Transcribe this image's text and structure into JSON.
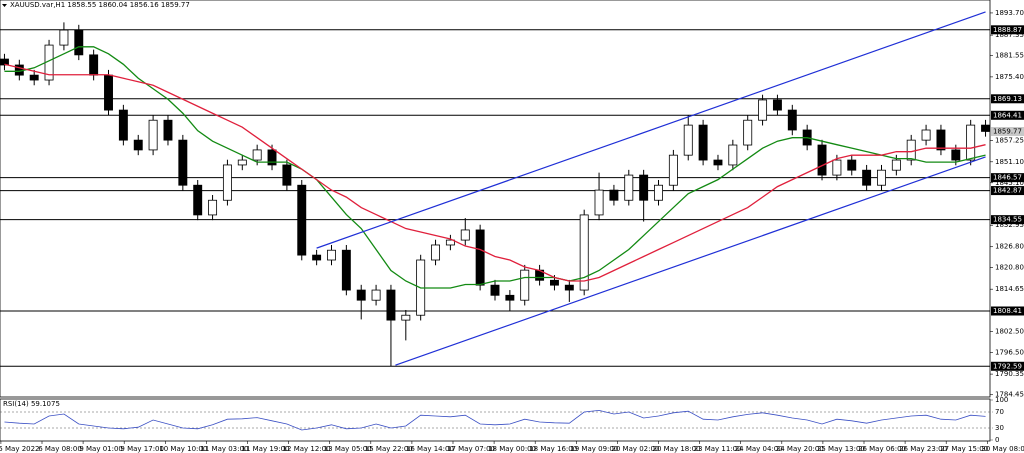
{
  "chart_data": [
    {
      "type": "candlestick",
      "title": "XAUUSD.var,H1  1858.55 1860.04 1856.16 1859.77",
      "ylim": [
        1783.8,
        1897.4
      ],
      "yticks": [
        {
          "value": 1893.7,
          "label": "1893.70"
        },
        1887.35,
        1881.55,
        {
          "value": 1875.4,
          "label": "1875.40"
        },
        1857.25,
        {
          "value": 1851.1,
          "label": "1851.10"
        },
        {
          "value": 1845.1,
          "label": "1845.10"
        },
        1832.95,
        {
          "value": 1826.8,
          "label": "1826.80"
        },
        {
          "value": 1820.8,
          "label": "1820.80"
        },
        1814.65,
        {
          "value": 1802.5,
          "label": "1802.50"
        },
        {
          "value": 1796.5,
          "label": "1796.50"
        },
        1790.35,
        1784.45
      ],
      "x_labels": [
        "5 May 2022",
        "6 May 08:00",
        "9 May 01:00",
        "9 May 17:00",
        "10 May 10:00",
        "11 May 03:00",
        "11 May 19:00",
        "12 May 12:00",
        "13 May 05:00",
        "15 May 22:00",
        "16 May 14:00",
        "17 May 07:00",
        "18 May 00:00",
        "18 May 16:00",
        "19 May 09:00",
        "20 May 02:00",
        "20 May 18:00",
        "23 May 11:00",
        "24 May 04:00",
        "24 May 20:00",
        "25 May 13:00",
        "26 May 06:00",
        "26 May 23:00",
        "27 May 15:00",
        "30 May 08:00"
      ],
      "open": [
        1880.5,
        1878.8,
        1875.9,
        1874.5,
        1884.5,
        1888.8,
        1881.7,
        1875.9,
        1865.9,
        1857.3,
        1854.5,
        1863.0,
        1857.3,
        1844.4,
        1835.9,
        1840.1,
        1850.2,
        1851.6,
        1854.5,
        1850.2,
        1844.4,
        1824.4,
        1823.0,
        1825.8,
        1814.4,
        1811.5,
        1814.4,
        1805.8,
        1807.2,
        1823.0,
        1827.3,
        1828.7,
        1831.6,
        1815.8,
        1812.9,
        1811.5,
        1820.1,
        1817.2,
        1815.8,
        1814.4,
        1835.9,
        1843.0,
        1840.1,
        1847.3,
        1840.1,
        1844.4,
        1853.0,
        1861.6,
        1851.6,
        1850.2,
        1855.9,
        1863.0,
        1868.8,
        1865.9,
        1860.2,
        1855.9,
        1847.3,
        1851.6,
        1848.7,
        1844.4,
        1848.7,
        1851.6,
        1857.3,
        1860.2,
        1854.5,
        1851.6,
        1861.6
      ],
      "high": [
        1882.0,
        1880.3,
        1877.4,
        1886.0,
        1891.0,
        1890.3,
        1883.2,
        1877.4,
        1867.4,
        1858.8,
        1864.5,
        1864.5,
        1858.8,
        1845.9,
        1841.6,
        1851.7,
        1853.1,
        1856.0,
        1856.0,
        1851.7,
        1845.9,
        1825.9,
        1827.3,
        1827.3,
        1815.9,
        1815.9,
        1815.9,
        1808.7,
        1824.5,
        1828.8,
        1830.2,
        1835.0,
        1833.1,
        1817.3,
        1814.4,
        1821.6,
        1821.6,
        1818.7,
        1817.3,
        1837.4,
        1848.0,
        1844.5,
        1848.8,
        1848.8,
        1845.9,
        1854.5,
        1864.4,
        1863.1,
        1853.1,
        1857.4,
        1864.5,
        1870.3,
        1870.3,
        1867.4,
        1861.7,
        1857.4,
        1853.1,
        1853.1,
        1850.2,
        1850.2,
        1853.1,
        1858.8,
        1861.7,
        1861.7,
        1856.0,
        1863.1,
        1863.1
      ],
      "low": [
        1877.3,
        1874.4,
        1873.0,
        1873.0,
        1883.0,
        1880.2,
        1874.4,
        1864.4,
        1855.8,
        1853.0,
        1853.0,
        1855.8,
        1842.9,
        1834.4,
        1834.4,
        1838.6,
        1848.7,
        1850.1,
        1848.7,
        1842.9,
        1822.9,
        1821.5,
        1821.5,
        1812.9,
        1806.0,
        1810.0,
        1792.6,
        1800.0,
        1805.7,
        1821.5,
        1825.8,
        1827.2,
        1814.3,
        1811.4,
        1808.4,
        1810.0,
        1815.7,
        1814.3,
        1811.0,
        1812.9,
        1834.4,
        1838.6,
        1838.6,
        1834.0,
        1838.6,
        1842.9,
        1851.5,
        1850.1,
        1848.7,
        1848.7,
        1854.4,
        1861.5,
        1864.4,
        1858.7,
        1854.4,
        1845.8,
        1845.8,
        1847.2,
        1842.9,
        1842.9,
        1847.2,
        1850.1,
        1855.8,
        1853.0,
        1850.1,
        1850.1,
        1858.3
      ],
      "close": [
        1878.8,
        1875.9,
        1874.5,
        1884.5,
        1888.8,
        1881.7,
        1875.9,
        1865.9,
        1857.3,
        1854.5,
        1863.0,
        1857.3,
        1844.4,
        1835.9,
        1840.1,
        1850.2,
        1851.6,
        1854.5,
        1850.2,
        1844.4,
        1824.4,
        1823.0,
        1825.8,
        1814.4,
        1811.5,
        1814.4,
        1805.8,
        1807.2,
        1823.0,
        1827.3,
        1828.7,
        1831.6,
        1815.8,
        1812.9,
        1811.5,
        1820.1,
        1817.2,
        1815.8,
        1814.4,
        1835.9,
        1843.0,
        1840.1,
        1847.3,
        1840.1,
        1844.4,
        1853.0,
        1861.6,
        1851.6,
        1850.2,
        1855.9,
        1863.0,
        1868.8,
        1865.9,
        1860.2,
        1855.9,
        1847.3,
        1851.6,
        1848.7,
        1844.4,
        1848.7,
        1851.6,
        1857.3,
        1860.2,
        1854.5,
        1851.6,
        1861.6,
        1859.8
      ],
      "moving_averages": [
        {
          "color": "#138a13",
          "values": [
            1877,
            1877,
            1878,
            1880,
            1882,
            1884,
            1884,
            1882,
            1879,
            1875,
            1872,
            1869,
            1865,
            1860,
            1857,
            1855,
            1853,
            1851,
            1851,
            1851,
            1849,
            1846,
            1841,
            1836,
            1832,
            1826,
            1820,
            1817,
            1815,
            1815,
            1815,
            1816,
            1816,
            1817,
            1817,
            1818,
            1818,
            1818,
            1817,
            1818,
            1820,
            1823,
            1826,
            1830,
            1834,
            1838,
            1842,
            1844,
            1846,
            1849,
            1852,
            1855,
            1857,
            1858,
            1858,
            1857,
            1856,
            1855,
            1854,
            1853,
            1852,
            1852,
            1851,
            1851,
            1851,
            1852,
            1853
          ]
        },
        {
          "color": "#e0203c",
          "values": [
            1879,
            1878,
            1877,
            1876,
            1876,
            1876,
            1876,
            1876,
            1875,
            1874,
            1873,
            1871,
            1869,
            1867,
            1865,
            1863,
            1861,
            1858,
            1855,
            1852,
            1849,
            1846,
            1843,
            1841,
            1838,
            1836,
            1834,
            1832,
            1831,
            1830,
            1829,
            1827,
            1826,
            1824,
            1823,
            1821,
            1820,
            1818,
            1817,
            1817,
            1818,
            1820,
            1822,
            1824,
            1826,
            1828,
            1830,
            1832,
            1834,
            1836,
            1838,
            1841,
            1844,
            1846,
            1848,
            1850,
            1852,
            1853,
            1853,
            1853,
            1854,
            1854,
            1855,
            1855,
            1855,
            1855,
            1856
          ]
        }
      ],
      "channels": [
        {
          "color": "#1f2fd6",
          "x": [
            21,
            66
          ],
          "y": [
            1826.4,
            1894.0
          ]
        },
        {
          "color": "#1f2fd6",
          "x": [
            26.3,
            66
          ],
          "y": [
            1792.9,
            1852.5
          ]
        }
      ],
      "levels": [
        1888.87,
        1869.13,
        1864.41,
        1846.57,
        1842.87,
        1834.55,
        1808.41,
        1792.59
      ],
      "last_price": 1859.77
    },
    {
      "type": "line",
      "title": "RSI(14) 59.1075",
      "color": "#3a4fc4",
      "ylim": [
        0,
        100
      ],
      "yticks": [
        100,
        70,
        30,
        0
      ],
      "values": [
        45,
        42,
        40,
        60,
        65,
        40,
        35,
        30,
        28,
        32,
        50,
        40,
        30,
        28,
        38,
        52,
        53,
        56,
        48,
        40,
        25,
        30,
        38,
        28,
        30,
        40,
        30,
        35,
        62,
        60,
        58,
        62,
        40,
        38,
        40,
        52,
        45,
        43,
        42,
        70,
        74,
        65,
        70,
        55,
        60,
        68,
        72,
        52,
        50,
        58,
        64,
        68,
        62,
        55,
        50,
        40,
        52,
        48,
        42,
        50,
        55,
        60,
        62,
        52,
        50,
        62,
        59.1
      ]
    }
  ]
}
